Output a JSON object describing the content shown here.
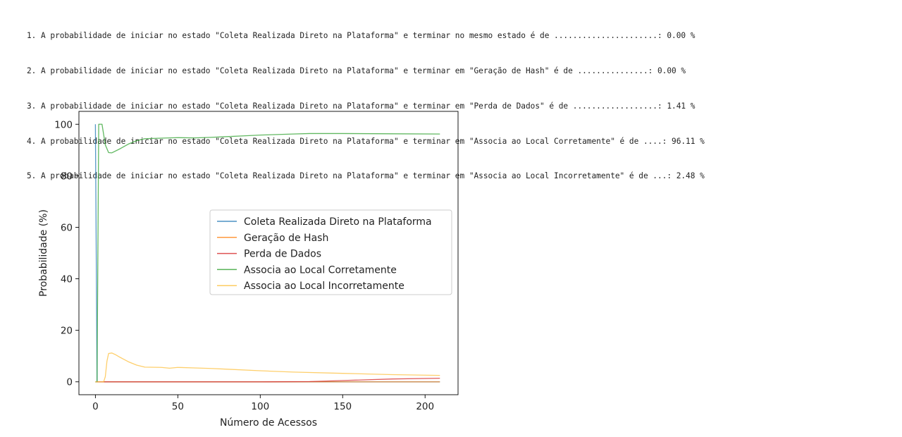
{
  "output": {
    "lines": [
      "1. A probabilidade de iniciar no estado \"Coleta Realizada Direto na Plataforma\" e terminar no mesmo estado é de ......................: 0.00 %",
      "2. A probabilidade de iniciar no estado \"Coleta Realizada Direto na Plataforma\" e terminar em \"Geração de Hash\" é de ...............: 0.00 %",
      "3. A probabilidade de iniciar no estado \"Coleta Realizada Direto na Plataforma\" e terminar em \"Perda de Dados\" é de ..................: 1.41 %",
      "4. A probabilidade de iniciar no estado \"Coleta Realizada Direto na Plataforma\" e terminar em \"Associa ao Local Corretamente\" é de ....: 96.11 %",
      "5. A probabilidade de iniciar no estado \"Coleta Realizada Direto na Plataforma\" e terminar em \"Associa ao Local Incorretamente\" é de ...: 2.48 %"
    ]
  },
  "chart_data": {
    "type": "line",
    "xlabel": "Número de Acessos",
    "ylabel": "Probabilidade (%)",
    "xlim": [
      -10,
      220
    ],
    "ylim": [
      -5,
      105
    ],
    "xticks": [
      0,
      50,
      100,
      150,
      200
    ],
    "yticks": [
      0,
      20,
      40,
      60,
      80,
      100
    ],
    "grid": false,
    "legend_position": "center-right",
    "series": [
      {
        "name": "Coleta Realizada Direto na Plataforma",
        "color": "#1f77b4",
        "x": [
          0,
          1,
          2,
          10,
          50,
          100,
          150,
          209
        ],
        "y": [
          100,
          0,
          0,
          0,
          0,
          0,
          0,
          0
        ]
      },
      {
        "name": "Geração de Hash",
        "color": "#ff7f0e",
        "x": [
          0,
          1,
          2,
          3,
          10,
          50,
          100,
          150,
          209
        ],
        "y": [
          0,
          0,
          0,
          0,
          0,
          0,
          0,
          0,
          0
        ]
      },
      {
        "name": "Perda de Dados",
        "color": "#d62728",
        "x": [
          0,
          2,
          50,
          100,
          130,
          150,
          180,
          209
        ],
        "y": [
          0,
          0,
          0,
          0,
          0.1,
          0.5,
          1.1,
          1.4
        ]
      },
      {
        "name": "Associa ao Local Corretamente",
        "color": "#2ca02c",
        "x": [
          0,
          1,
          2,
          4,
          6,
          8,
          10,
          15,
          20,
          25,
          30,
          40,
          50,
          60,
          70,
          80,
          90,
          100,
          110,
          120,
          130,
          150,
          180,
          209
        ],
        "y": [
          0,
          0,
          100,
          100,
          92,
          89,
          88.9,
          90.5,
          92.3,
          93.6,
          94.4,
          94.6,
          94.8,
          94.7,
          94.9,
          95.2,
          95.5,
          95.8,
          96.0,
          96.2,
          96.4,
          96.4,
          96.3,
          96.2
        ]
      },
      {
        "name": "Associa ao Local Incorretamente",
        "color": "#fdbf3b",
        "x": [
          0,
          1,
          2,
          3,
          4,
          5,
          6,
          7,
          8,
          10,
          12,
          15,
          20,
          25,
          30,
          40,
          45,
          50,
          60,
          70,
          80,
          100,
          120,
          150,
          180,
          209
        ],
        "y": [
          0,
          0,
          0,
          0,
          0,
          0,
          2,
          8,
          11,
          11.2,
          10.6,
          9.5,
          7.8,
          6.5,
          5.7,
          5.6,
          5.3,
          5.6,
          5.4,
          5.2,
          4.9,
          4.3,
          3.8,
          3.3,
          2.8,
          2.5
        ]
      }
    ]
  }
}
